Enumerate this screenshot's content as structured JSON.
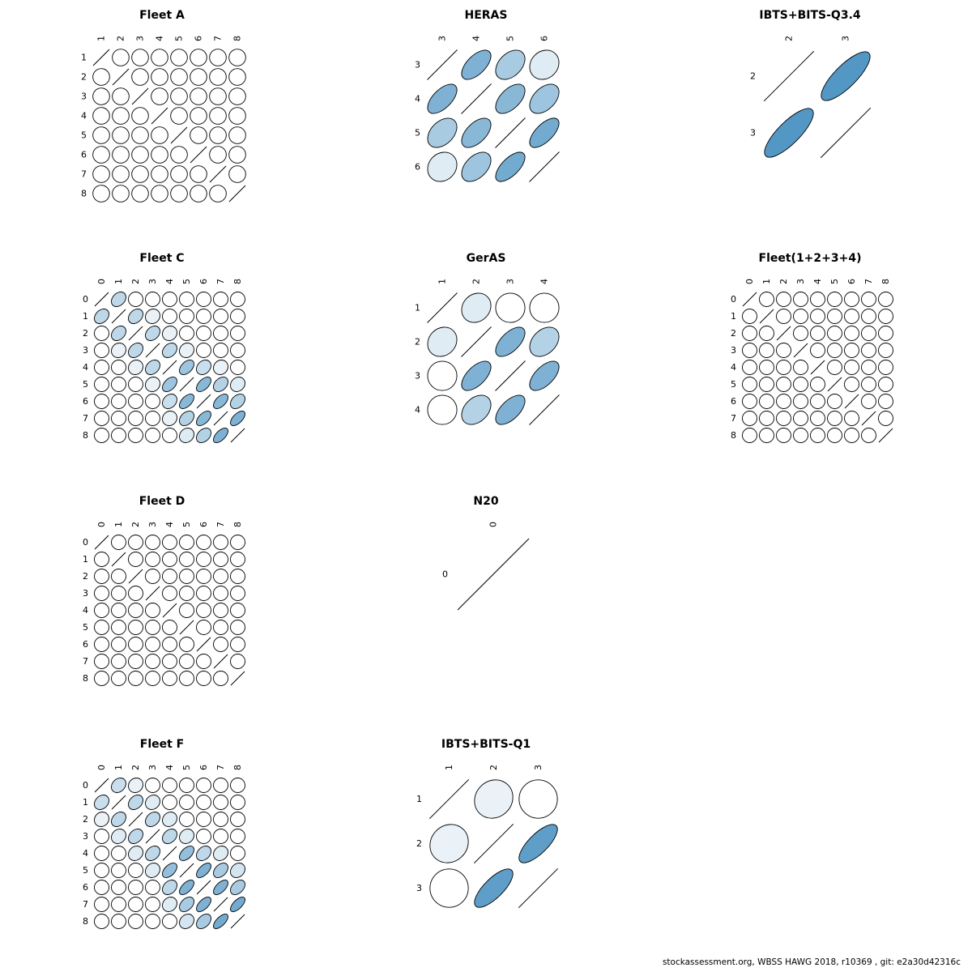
{
  "page": {
    "background": "#ffffff"
  },
  "footer": {
    "text": "stockassessment.org, WBSS HAWG 2018, r10369 , git: e2a30d42316c"
  },
  "colors": {
    "corr_full": "#287db7",
    "corr_zero": "#ffffff",
    "stroke": "#000000"
  },
  "chart_data": [
    {
      "type": "heatmap",
      "variant": "correlation-ellipse-matrix",
      "title": "Fleet A",
      "grid": {
        "row": 1,
        "col": 1
      },
      "labels": [
        "1",
        "2",
        "3",
        "4",
        "5",
        "6",
        "7",
        "8"
      ],
      "corr": [
        [
          1,
          0,
          0,
          0,
          0,
          0,
          0,
          0
        ],
        [
          0,
          1,
          0,
          0,
          0,
          0,
          0,
          0
        ],
        [
          0,
          0,
          1,
          0,
          0,
          0,
          0,
          0
        ],
        [
          0,
          0,
          0,
          1,
          0,
          0,
          0,
          0
        ],
        [
          0,
          0,
          0,
          0,
          1,
          0,
          0,
          0
        ],
        [
          0,
          0,
          0,
          0,
          0,
          1,
          0,
          0
        ],
        [
          0,
          0,
          0,
          0,
          0,
          0,
          1,
          0
        ],
        [
          0,
          0,
          0,
          0,
          0,
          0,
          0,
          1
        ]
      ]
    },
    {
      "type": "heatmap",
      "variant": "correlation-ellipse-matrix",
      "title": "HERAS",
      "grid": {
        "row": 1,
        "col": 2
      },
      "labels": [
        "3",
        "4",
        "5",
        "6"
      ],
      "corr": [
        [
          1,
          0.6,
          0.4,
          0.15
        ],
        [
          0.6,
          1,
          0.55,
          0.45
        ],
        [
          0.4,
          0.55,
          1,
          0.65
        ],
        [
          0.15,
          0.45,
          0.65,
          1
        ]
      ]
    },
    {
      "type": "heatmap",
      "variant": "correlation-ellipse-matrix",
      "title": "IBTS+BITS-Q3.4",
      "grid": {
        "row": 1,
        "col": 3
      },
      "labels": [
        "2",
        "3"
      ],
      "corr": [
        [
          1,
          0.8
        ],
        [
          0.8,
          1
        ]
      ]
    },
    {
      "type": "heatmap",
      "variant": "correlation-ellipse-matrix",
      "title": "Fleet C",
      "grid": {
        "row": 2,
        "col": 1
      },
      "labels": [
        "0",
        "1",
        "2",
        "3",
        "4",
        "5",
        "6",
        "7",
        "8"
      ],
      "corr": [
        [
          1,
          0.3,
          0,
          0,
          0,
          0,
          0,
          0,
          0
        ],
        [
          0.3,
          1,
          0.3,
          0.1,
          0,
          0,
          0,
          0,
          0
        ],
        [
          0,
          0.3,
          1,
          0.3,
          0.1,
          0,
          0,
          0,
          0
        ],
        [
          0,
          0.1,
          0.3,
          1,
          0.3,
          0.1,
          0,
          0,
          0
        ],
        [
          0,
          0,
          0.1,
          0.3,
          1,
          0.45,
          0.25,
          0.1,
          0
        ],
        [
          0,
          0,
          0,
          0.1,
          0.45,
          1,
          0.55,
          0.35,
          0.15
        ],
        [
          0,
          0,
          0,
          0,
          0.25,
          0.55,
          1,
          0.55,
          0.35
        ],
        [
          0,
          0,
          0,
          0,
          0.1,
          0.35,
          0.55,
          1,
          0.6
        ],
        [
          0,
          0,
          0,
          0,
          0,
          0.15,
          0.35,
          0.6,
          1
        ]
      ]
    },
    {
      "type": "heatmap",
      "variant": "correlation-ellipse-matrix",
      "title": "GerAS",
      "grid": {
        "row": 2,
        "col": 2
      },
      "labels": [
        "1",
        "2",
        "3",
        "4"
      ],
      "corr": [
        [
          1,
          0.15,
          0,
          0
        ],
        [
          0.15,
          1,
          0.6,
          0.35
        ],
        [
          0,
          0.6,
          1,
          0.6
        ],
        [
          0,
          0.35,
          0.6,
          1
        ]
      ]
    },
    {
      "type": "heatmap",
      "variant": "correlation-ellipse-matrix",
      "title": "Fleet(1+2+3+4)",
      "grid": {
        "row": 2,
        "col": 3
      },
      "labels": [
        "0",
        "1",
        "2",
        "3",
        "4",
        "5",
        "6",
        "7",
        "8"
      ],
      "corr": [
        [
          1,
          0,
          0,
          0,
          0,
          0,
          0,
          0,
          0
        ],
        [
          0,
          1,
          0,
          0,
          0,
          0,
          0,
          0,
          0
        ],
        [
          0,
          0,
          1,
          0,
          0,
          0,
          0,
          0,
          0
        ],
        [
          0,
          0,
          0,
          1,
          0,
          0,
          0,
          0,
          0
        ],
        [
          0,
          0,
          0,
          0,
          1,
          0,
          0,
          0,
          0
        ],
        [
          0,
          0,
          0,
          0,
          0,
          1,
          0,
          0,
          0
        ],
        [
          0,
          0,
          0,
          0,
          0,
          0,
          1,
          0,
          0
        ],
        [
          0,
          0,
          0,
          0,
          0,
          0,
          0,
          1,
          0
        ],
        [
          0,
          0,
          0,
          0,
          0,
          0,
          0,
          0,
          1
        ]
      ]
    },
    {
      "type": "heatmap",
      "variant": "correlation-ellipse-matrix",
      "title": "Fleet D",
      "grid": {
        "row": 3,
        "col": 1
      },
      "labels": [
        "0",
        "1",
        "2",
        "3",
        "4",
        "5",
        "6",
        "7",
        "8"
      ],
      "corr": [
        [
          1,
          0,
          0,
          0,
          0,
          0,
          0,
          0,
          0
        ],
        [
          0,
          1,
          0,
          0,
          0,
          0,
          0,
          0,
          0
        ],
        [
          0,
          0,
          1,
          0,
          0,
          0,
          0,
          0,
          0
        ],
        [
          0,
          0,
          0,
          1,
          0,
          0,
          0,
          0,
          0
        ],
        [
          0,
          0,
          0,
          0,
          1,
          0,
          0,
          0,
          0
        ],
        [
          0,
          0,
          0,
          0,
          0,
          1,
          0,
          0,
          0
        ],
        [
          0,
          0,
          0,
          0,
          0,
          0,
          1,
          0,
          0
        ],
        [
          0,
          0,
          0,
          0,
          0,
          0,
          0,
          1,
          0
        ],
        [
          0,
          0,
          0,
          0,
          0,
          0,
          0,
          0,
          1
        ]
      ]
    },
    {
      "type": "heatmap",
      "variant": "correlation-ellipse-matrix",
      "title": "N20",
      "grid": {
        "row": 3,
        "col": 2
      },
      "labels": [
        "0"
      ],
      "corr": [
        [
          1
        ]
      ]
    },
    {
      "type": "heatmap",
      "variant": "correlation-ellipse-matrix",
      "title": "Fleet F",
      "grid": {
        "row": 4,
        "col": 1
      },
      "labels": [
        "0",
        "1",
        "2",
        "3",
        "4",
        "5",
        "6",
        "7",
        "8"
      ],
      "corr": [
        [
          1,
          0.25,
          0.1,
          0,
          0,
          0,
          0,
          0,
          0
        ],
        [
          0.25,
          1,
          0.3,
          0.15,
          0,
          0,
          0,
          0,
          0
        ],
        [
          0.1,
          0.3,
          1,
          0.3,
          0.15,
          0,
          0,
          0,
          0
        ],
        [
          0,
          0.15,
          0.3,
          1,
          0.3,
          0.15,
          0,
          0,
          0
        ],
        [
          0,
          0,
          0.15,
          0.3,
          1,
          0.5,
          0.3,
          0.15,
          0
        ],
        [
          0,
          0,
          0,
          0.15,
          0.5,
          1,
          0.6,
          0.4,
          0.2
        ],
        [
          0,
          0,
          0,
          0,
          0.3,
          0.6,
          1,
          0.6,
          0.4
        ],
        [
          0,
          0,
          0,
          0,
          0.15,
          0.4,
          0.6,
          1,
          0.65
        ],
        [
          0,
          0,
          0,
          0,
          0,
          0.2,
          0.4,
          0.65,
          1
        ]
      ]
    },
    {
      "type": "heatmap",
      "variant": "correlation-ellipse-matrix",
      "title": "IBTS+BITS-Q1",
      "grid": {
        "row": 4,
        "col": 2
      },
      "labels": [
        "1",
        "2",
        "3"
      ],
      "corr": [
        [
          1,
          0.1,
          0
        ],
        [
          0.1,
          1,
          0.75
        ],
        [
          0,
          0.75,
          1
        ]
      ]
    }
  ]
}
